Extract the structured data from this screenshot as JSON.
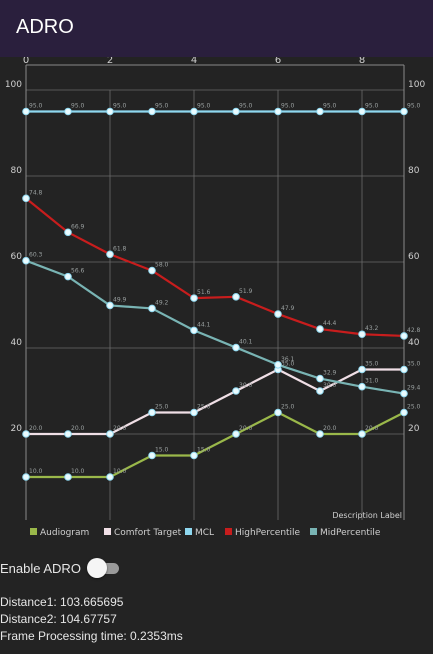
{
  "app": {
    "title": "ADRO"
  },
  "chart_data": {
    "type": "line",
    "description_label": "Description Label",
    "x_top_ticks": [
      "0",
      "2",
      "4",
      "6",
      "8"
    ],
    "y_left_ticks": [
      "100",
      "80",
      "60",
      "40",
      "20"
    ],
    "y_right_ticks": [
      "100",
      "80",
      "60",
      "40",
      "20"
    ],
    "xlim": [
      0,
      9
    ],
    "ylim": [
      0,
      100
    ],
    "grid": true,
    "legend_position": "bottom",
    "x": [
      0,
      1,
      2,
      3,
      4,
      5,
      6,
      7,
      8,
      9
    ],
    "series": [
      {
        "name": "Audiogram",
        "color": "#9ab84a",
        "values": [
          10,
          10,
          10,
          15,
          15,
          20,
          25,
          20,
          20,
          25
        ]
      },
      {
        "name": "Comfort Target",
        "color": "#f0dfe6",
        "values": [
          20,
          20,
          20,
          25,
          25,
          30,
          35,
          30,
          35,
          35
        ]
      },
      {
        "name": "MCL",
        "color": "#8fd8f0",
        "values": [
          95,
          95,
          95,
          95,
          95,
          95,
          95,
          95,
          95,
          95
        ]
      },
      {
        "name": "HighPercentile",
        "color": "#c81d1d",
        "values": [
          74.8,
          66.9,
          61.8,
          58,
          51.6,
          51.9,
          47.9,
          44.4,
          43.2,
          42.8
        ]
      },
      {
        "name": "MidPercentile",
        "color": "#79b4b4",
        "values": [
          60.3,
          56.6,
          49.9,
          49.2,
          44.1,
          40.1,
          36.1,
          32.9,
          31,
          29.4
        ]
      }
    ]
  },
  "controls": {
    "enable_adro_label": "Enable ADRO",
    "enable_adro_on": false
  },
  "stats": {
    "distance1": "Distance1: 103.665695",
    "distance2": "Distance2: 104.67757",
    "frame_time": "Frame Processing time: 0.2353ms"
  }
}
